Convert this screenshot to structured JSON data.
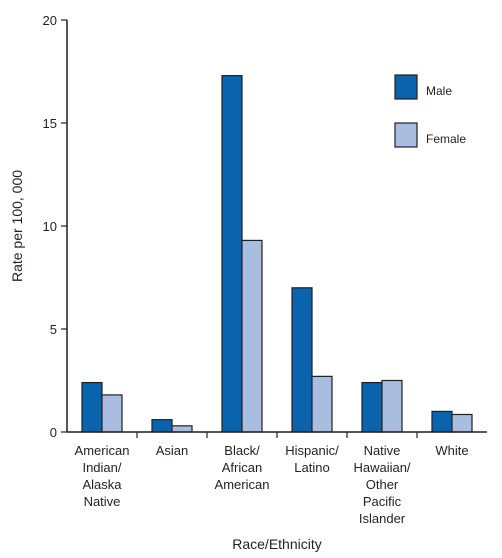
{
  "chart_data": {
    "type": "bar",
    "title": "",
    "xlabel": "Race/Ethnicity",
    "ylabel": "Rate per 100, 000",
    "ylim": [
      0,
      20
    ],
    "yticks": [
      0,
      5,
      10,
      15,
      20
    ],
    "categories": [
      [
        "American",
        "Indian/",
        "Alaska",
        "Native"
      ],
      [
        "Asian"
      ],
      [
        "Black/",
        "African",
        "American"
      ],
      [
        "Hispanic/",
        "Latino"
      ],
      [
        "Native",
        "Hawaiian/",
        "Other",
        "Pacific",
        "Islander"
      ],
      [
        "White"
      ]
    ],
    "series": [
      {
        "name": "Male",
        "color": "#0a64ad",
        "values": [
          2.4,
          0.6,
          17.3,
          7.0,
          2.4,
          1.0
        ]
      },
      {
        "name": "Female",
        "color": "#a9bde0",
        "values": [
          1.8,
          0.3,
          9.3,
          2.7,
          2.5,
          0.85
        ]
      }
    ],
    "legend": {
      "position": "top-right"
    },
    "grid": false
  }
}
